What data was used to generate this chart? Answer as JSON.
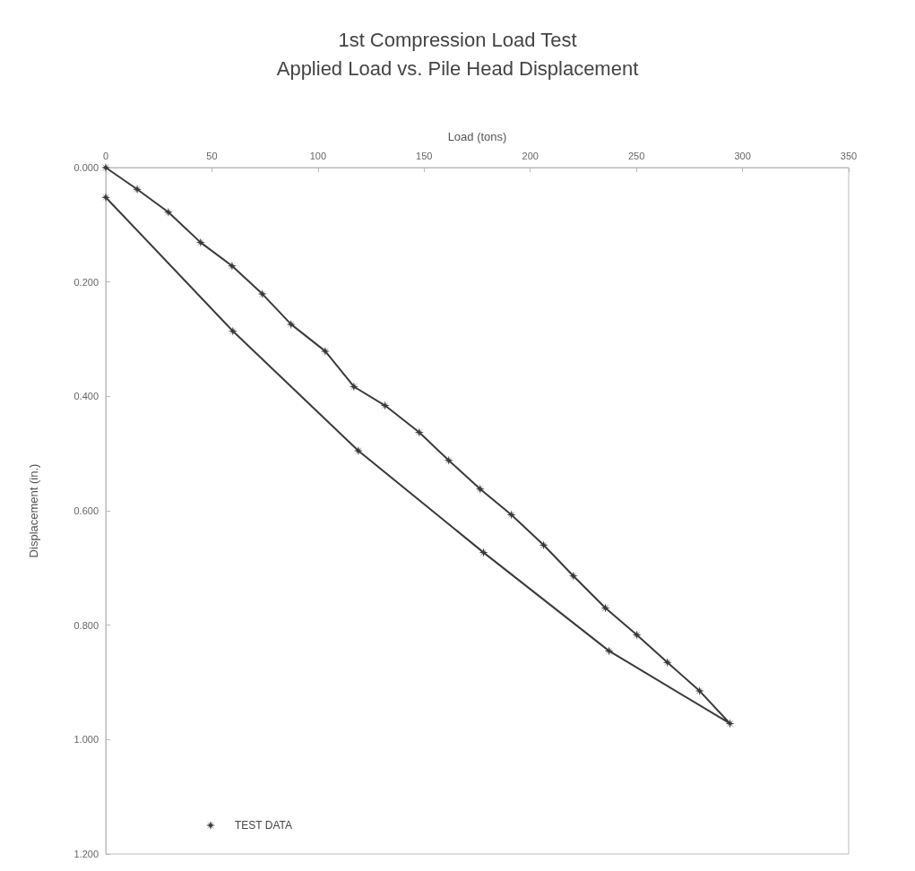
{
  "chart_data": {
    "type": "line",
    "title": "1st Compression Load Test",
    "subtitle": "Applied Load vs. Pile Head Displacement",
    "xlabel": "Load (tons)",
    "ylabel": "Displacement (in.)",
    "series": [
      {
        "name": "TEST DATA",
        "color": "#3a3a3a",
        "x": [
          0,
          14.8,
          29.5,
          44.7,
          59.5,
          73.8,
          87.3,
          103.4,
          116.9,
          131.6,
          147.7,
          161.6,
          176.4,
          191.1,
          206.3,
          220.3,
          235.4,
          250.2,
          264.6,
          279.8,
          294.1,
          237.1,
          178,
          119,
          59.9,
          0
        ],
        "values": [
          0,
          0.038,
          0.078,
          0.131,
          0.172,
          0.221,
          0.274,
          0.321,
          0.383,
          0.416,
          0.463,
          0.512,
          0.562,
          0.607,
          0.66,
          0.714,
          0.77,
          0.817,
          0.865,
          0.915,
          0.972,
          0.845,
          0.673,
          0.495,
          0.286,
          0.052
        ]
      }
    ],
    "xlim": [
      0,
      350
    ],
    "xticks": [
      0,
      50,
      100,
      150,
      200,
      250,
      300,
      350
    ],
    "ylim": [
      1.2,
      0
    ],
    "yticks": [
      {
        "value": 0,
        "label": "0.000"
      },
      {
        "value": 0.2,
        "label": "0.200"
      },
      {
        "value": 0.4,
        "label": "0.400"
      },
      {
        "value": 0.6,
        "label": "0.600"
      },
      {
        "value": 0.8,
        "label": "0.800"
      },
      {
        "value": 1.0,
        "label": "1.000"
      },
      {
        "value": 1.2,
        "label": "1.200"
      }
    ],
    "grid": false,
    "legend": "bottom left",
    "marker": "star",
    "line_style": "solid"
  }
}
